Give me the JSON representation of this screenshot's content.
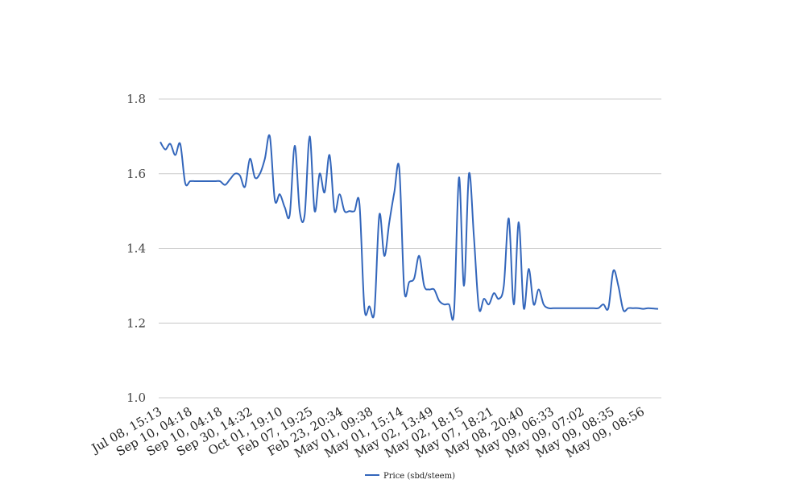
{
  "chart_data": {
    "type": "line",
    "title": "",
    "xlabel": "",
    "ylabel": "",
    "ylim": [
      1.0,
      1.8
    ],
    "yticks": [
      1.0,
      1.2,
      1.4,
      1.6,
      1.8
    ],
    "grid": true,
    "legend_position": "bottom",
    "xtick_labels": [
      "Jul 08, 15:13",
      "Sep 10, 04:18",
      "Sep 10, 04:18",
      "Sep 30, 14:32",
      "Oct 01, 19:10",
      "Feb 07, 19:25",
      "Feb 23, 20:34",
      "May 01, 09:38",
      "May 01, 15:14",
      "May 02, 13:49",
      "May 02, 18:15",
      "May 07, 18:21",
      "May 08, 20:40",
      "May 09, 06:33",
      "May 09, 07:02",
      "May 09, 08:35",
      "May 09, 08:56"
    ],
    "series": [
      {
        "name": "Price (sbd/steem)",
        "color": "#3366bb",
        "values": [
          1.685,
          1.665,
          1.68,
          1.65,
          1.68,
          1.575,
          1.58,
          1.58,
          1.58,
          1.58,
          1.58,
          1.58,
          1.58,
          1.57,
          1.585,
          1.6,
          1.595,
          1.565,
          1.64,
          1.59,
          1.6,
          1.64,
          1.7,
          1.53,
          1.545,
          1.51,
          1.49,
          1.675,
          1.5,
          1.49,
          1.7,
          1.5,
          1.6,
          1.55,
          1.65,
          1.5,
          1.545,
          1.5,
          1.5,
          1.5,
          1.52,
          1.24,
          1.245,
          1.23,
          1.49,
          1.38,
          1.47,
          1.55,
          1.615,
          1.29,
          1.31,
          1.32,
          1.38,
          1.3,
          1.29,
          1.29,
          1.26,
          1.25,
          1.25,
          1.23,
          1.59,
          1.3,
          1.6,
          1.43,
          1.24,
          1.265,
          1.25,
          1.28,
          1.265,
          1.3,
          1.48,
          1.25,
          1.47,
          1.24,
          1.345,
          1.25,
          1.29,
          1.25,
          1.24,
          1.24,
          1.24,
          1.24,
          1.24,
          1.24,
          1.24,
          1.24,
          1.24,
          1.24,
          1.24,
          1.25,
          1.24,
          1.34,
          1.3,
          1.235,
          1.24,
          1.24,
          1.24,
          1.238,
          1.24,
          1.239,
          1.238
        ]
      }
    ]
  }
}
